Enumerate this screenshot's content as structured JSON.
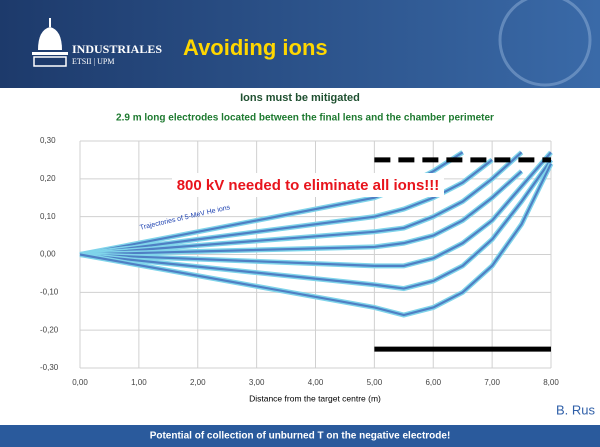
{
  "header": {
    "logo_main": "INDUSTRIALES",
    "logo_sub": "ETSII | UPM",
    "title": "Avoiding ions"
  },
  "chart_data": {
    "type": "line",
    "title": "Ions must be mitigated",
    "subtitle": "2.9 m long electrodes located between the final lens and the chamber perimeter",
    "x_label": "Distance from the target centre (m)",
    "annotations": [
      "800 kV needed to eliminate all ions!!!",
      "Trajectories of 5-MeV He ions"
    ],
    "x": [
      0,
      5,
      5.5,
      6,
      6.5,
      7,
      7.5,
      8
    ],
    "series": [
      {
        "color": "#4f7fc4",
        "values": [
          0,
          0.15,
          0.18,
          0.22,
          0.27,
          null,
          null,
          null
        ]
      },
      {
        "color": "#4f7fc4",
        "values": [
          0,
          0.1,
          0.12,
          0.15,
          0.19,
          0.25,
          null,
          null
        ]
      },
      {
        "color": "#4f7fc4",
        "values": [
          0,
          0.06,
          0.07,
          0.1,
          0.14,
          0.2,
          0.27,
          null
        ]
      },
      {
        "color": "#4f7fc4",
        "values": [
          0,
          0.02,
          0.03,
          0.05,
          0.09,
          0.15,
          0.22,
          null
        ]
      },
      {
        "color": "#4f7fc4",
        "values": [
          0,
          -0.03,
          -0.03,
          -0.01,
          0.03,
          0.09,
          0.18,
          0.27
        ]
      },
      {
        "color": "#4f7fc4",
        "values": [
          0,
          -0.08,
          -0.09,
          -0.07,
          -0.03,
          0.04,
          0.14,
          0.25
        ]
      },
      {
        "color": "#4f7fc4",
        "values": [
          0,
          -0.14,
          -0.16,
          -0.14,
          -0.1,
          -0.03,
          0.08,
          0.24
        ]
      }
    ],
    "electrodes": [
      {
        "x": [
          5,
          8
        ],
        "values": [
          0.25,
          0.25
        ],
        "dashed": true,
        "color": "#000000"
      },
      {
        "x": [
          5,
          8
        ],
        "values": [
          -0.25,
          -0.25
        ],
        "dashed": false,
        "color": "#000000"
      }
    ],
    "xlim": [
      0,
      8
    ],
    "xticks": [
      {
        "value": 0,
        "label": "0,00"
      },
      {
        "value": 1,
        "label": "1,00"
      },
      {
        "value": 2,
        "label": "2,00"
      },
      {
        "value": 3,
        "label": "3,00"
      },
      {
        "value": 4,
        "label": "4,00"
      },
      {
        "value": 5,
        "label": "5,00"
      },
      {
        "value": 6,
        "label": "6,00"
      },
      {
        "value": 7,
        "label": "7,00"
      },
      {
        "value": 8,
        "label": "8,00"
      }
    ],
    "ylim": [
      -0.3,
      0.3
    ],
    "yticks": [
      {
        "value": 0.3,
        "label": "0,30"
      },
      {
        "value": 0.2,
        "label": "0,20"
      },
      {
        "value": 0.1,
        "label": "0,10"
      },
      {
        "value": 0,
        "label": "0,00"
      },
      {
        "value": -0.1,
        "label": "-0,10"
      },
      {
        "value": -0.2,
        "label": "-0,20"
      },
      {
        "value": -0.3,
        "label": "-0,30"
      }
    ],
    "grid": true
  },
  "author": "B. Rus",
  "footer": "Potential of collection of unburned T on the negative electrode!"
}
